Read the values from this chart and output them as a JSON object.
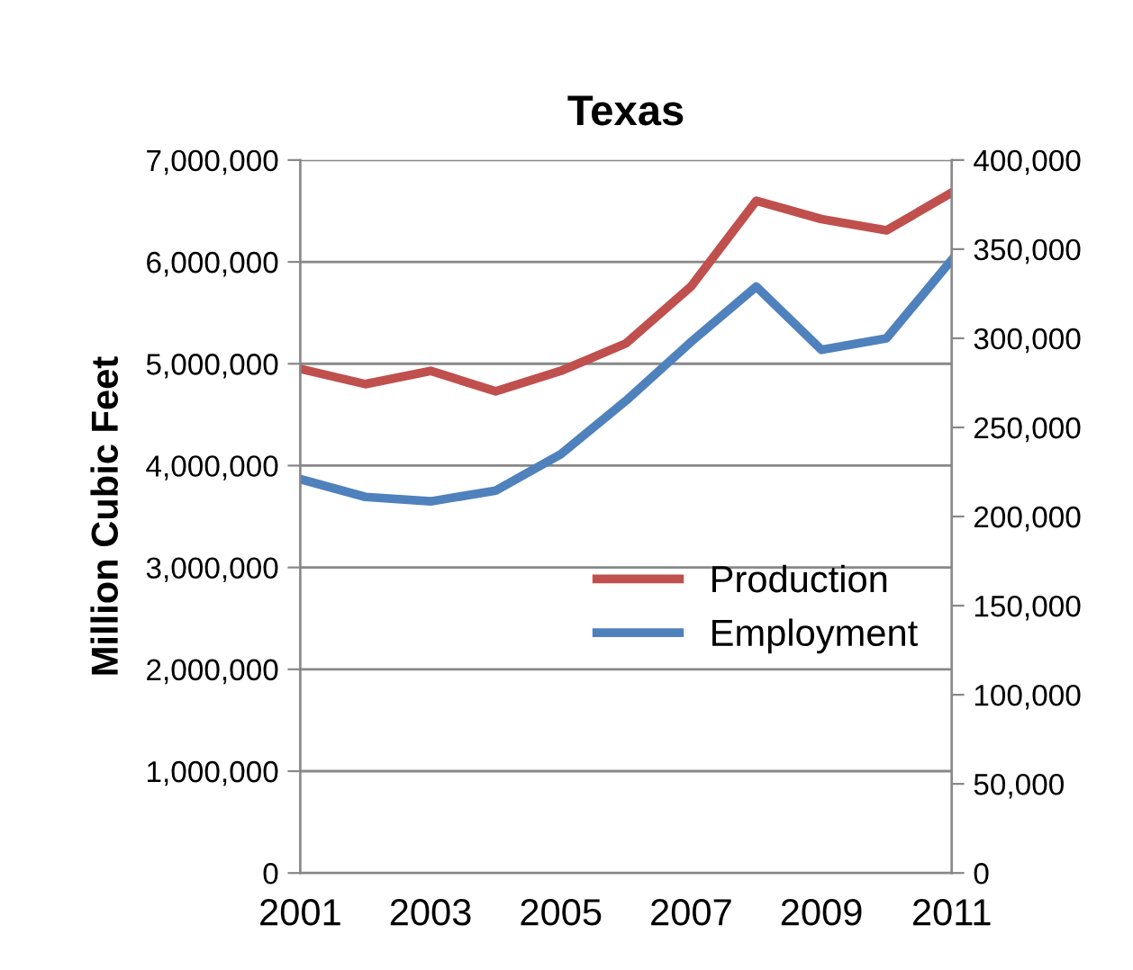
{
  "chart_data": {
    "type": "line",
    "title": "Texas",
    "ylabel": "Million Cubic Feet",
    "x": [
      2001,
      2002,
      2003,
      2004,
      2005,
      2006,
      2007,
      2008,
      2009,
      2010,
      2011
    ],
    "series": [
      {
        "name": "Production",
        "color": "#c0504d",
        "values": [
          4950000,
          4800000,
          4930000,
          4730000,
          4930000,
          5200000,
          5760000,
          6600000,
          6420000,
          6310000,
          6680000
        ]
      },
      {
        "name": "Employment",
        "color": "#4f81bd",
        "axis": "y2",
        "values": [
          221000,
          211000,
          208500,
          214500,
          235000,
          265000,
          298000,
          329000,
          293500,
          300000,
          344000
        ]
      }
    ],
    "xlim": [
      2001,
      2011
    ],
    "xticks": [
      2001,
      2003,
      2005,
      2007,
      2009,
      2011
    ],
    "ylim": [
      0,
      7000000
    ],
    "yticks": [
      {
        "value": 0,
        "label": "0"
      },
      {
        "value": 1000000,
        "label": "1,000,000"
      },
      {
        "value": 2000000,
        "label": "2,000,000"
      },
      {
        "value": 3000000,
        "label": "3,000,000"
      },
      {
        "value": 4000000,
        "label": "4,000,000"
      },
      {
        "value": 5000000,
        "label": "5,000,000"
      },
      {
        "value": 6000000,
        "label": "6,000,000"
      },
      {
        "value": 7000000,
        "label": "7,000,000"
      }
    ],
    "y2lim": [
      0,
      400000
    ],
    "y2ticks": [
      {
        "value": 0,
        "label": "0"
      },
      {
        "value": 50000,
        "label": "50,000"
      },
      {
        "value": 100000,
        "label": "100,000"
      },
      {
        "value": 150000,
        "label": "150,000"
      },
      {
        "value": 200000,
        "label": "200,000"
      },
      {
        "value": 250000,
        "label": "250,000"
      },
      {
        "value": 300000,
        "label": "300,000"
      },
      {
        "value": 350000,
        "label": "350,000"
      },
      {
        "value": 400000,
        "label": "400,000"
      }
    ],
    "grid": "y",
    "legend": "center right",
    "line_style": "solid",
    "marker": "none"
  }
}
